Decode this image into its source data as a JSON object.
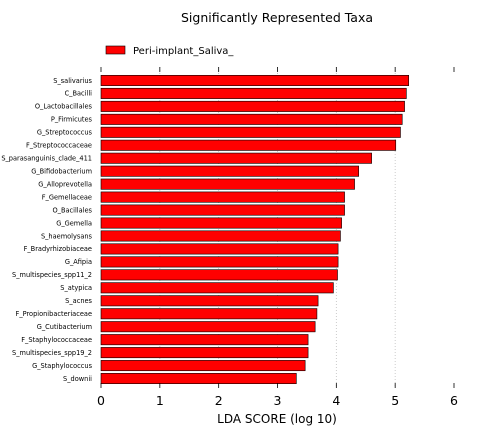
{
  "chart_data": {
    "type": "bar",
    "orientation": "horizontal",
    "title": "Significantly Represented Taxa",
    "xlabel": "LDA SCORE (log 10)",
    "ylabel": "",
    "xlim": [
      0,
      6
    ],
    "xticks": [
      "0",
      "1",
      "2",
      "3",
      "4",
      "5",
      "6"
    ],
    "grid": "vertical dotted",
    "legend_position": "top-left",
    "bar_color": "#ff0000",
    "series": [
      {
        "name": "Peri-implant_Saliva_"
      }
    ],
    "categories": [
      "S_salivarius",
      "C_Bacilli",
      "O_Lactobacillales",
      "P_Firmicutes",
      "G_Streptococcus",
      "F_Streptococcaceae",
      "S_parasanguinis_clade_411",
      "G_Bifidobacterium",
      "G_Alloprevotella",
      "F_Gemellaceae",
      "O_Bacillales",
      "G_Gemella",
      "S_haemolysans",
      "F_Bradyrhizobiaceae",
      "G_Afipia",
      "S_multispecies_spp11_2",
      "S_atypica",
      "S_acnes",
      "F_Propionibacteriaceae",
      "G_Cutibacterium",
      "F_Staphylococcaceae",
      "S_multispecies_spp19_2",
      "G_Staphylococcus",
      "S_downii"
    ],
    "values": [
      5.23,
      5.19,
      5.16,
      5.12,
      5.09,
      5.01,
      4.6,
      4.38,
      4.31,
      4.14,
      4.14,
      4.09,
      4.07,
      4.03,
      4.03,
      4.02,
      3.95,
      3.69,
      3.67,
      3.64,
      3.52,
      3.52,
      3.47,
      3.32
    ]
  }
}
